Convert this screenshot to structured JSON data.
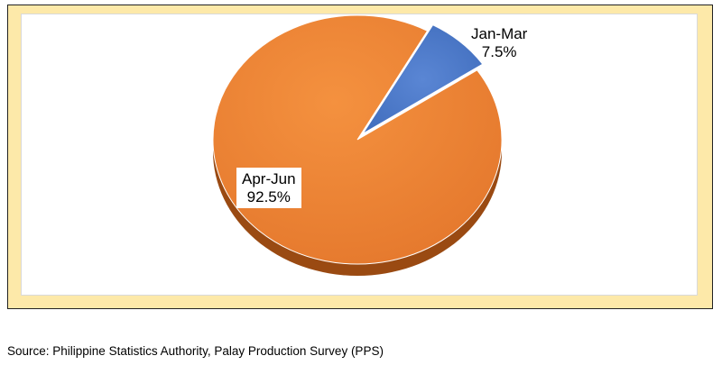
{
  "chart_data": {
    "type": "pie",
    "slices": [
      {
        "label": "Jan-Mar",
        "value": 7.5,
        "value_label": "7.5%",
        "color": "#4472c4"
      },
      {
        "label": "Apr-Jun",
        "value": 92.5,
        "value_label": "92.5%",
        "color": "#ed7d31"
      }
    ],
    "frame_color": "#fde9a9",
    "three_d": true
  },
  "source_note": "Source: Philippine Statistics Authority, Palay Production Survey (PPS)"
}
